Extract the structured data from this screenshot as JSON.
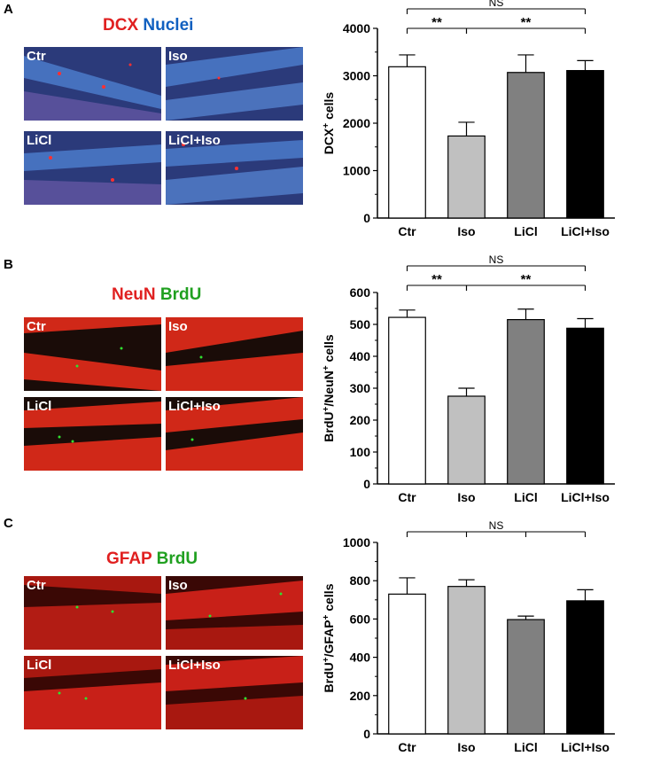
{
  "panels": [
    {
      "letter": "A",
      "stain1": "DCX",
      "stain2": "Nuclei",
      "stain1_color": "#e02020",
      "stain2_color": "#1060c0",
      "image_labels": [
        "Ctr",
        "Iso",
        "LiCl",
        "LiCl+Iso"
      ]
    },
    {
      "letter": "B",
      "stain1": "NeuN",
      "stain2": "BrdU",
      "stain1_color": "#e02020",
      "stain2_color": "#20a020",
      "image_labels": [
        "Ctr",
        "Iso",
        "LiCl",
        "LiCl+Iso"
      ]
    },
    {
      "letter": "C",
      "stain1": "GFAP",
      "stain2": "BrdU",
      "stain1_color": "#e02020",
      "stain2_color": "#20a020",
      "image_labels": [
        "Ctr",
        "Iso",
        "LiCl",
        "LiCl+Iso"
      ]
    }
  ],
  "chart_data": [
    {
      "type": "bar",
      "categories": [
        "Ctr",
        "Iso",
        "LiCl",
        "LiCl+Iso"
      ],
      "values": [
        3190,
        1730,
        3070,
        3110
      ],
      "errors": [
        250,
        290,
        370,
        210
      ],
      "colors": [
        "#ffffff",
        "#c0c0c0",
        "#808080",
        "#000000"
      ],
      "ylabel_main": "DCX",
      "ylabel_sup": "+",
      "ylabel_tail": " cells",
      "ylim": [
        0,
        4000
      ],
      "yticks": [
        "0",
        "1000",
        "2000",
        "3000",
        "4000"
      ],
      "significance": [
        {
          "from": 0,
          "to": 1,
          "label": "**"
        },
        {
          "from": 1,
          "to": 3,
          "label": "**"
        },
        {
          "from": 0,
          "to": 3,
          "label": "NS"
        }
      ]
    },
    {
      "type": "bar",
      "categories": [
        "Ctr",
        "Iso",
        "LiCl",
        "LiCl+Iso"
      ],
      "values": [
        522,
        275,
        515,
        488
      ],
      "errors": [
        23,
        25,
        33,
        30
      ],
      "colors": [
        "#ffffff",
        "#c0c0c0",
        "#808080",
        "#000000"
      ],
      "ylabel_parts": [
        {
          "t": "BrdU"
        },
        {
          "t": "+",
          "sup": true
        },
        {
          "t": "/NeuN"
        },
        {
          "t": "+",
          "sup": true
        },
        {
          "t": " cells"
        }
      ],
      "ylim": [
        0,
        600
      ],
      "yticks": [
        "0",
        "100",
        "200",
        "300",
        "400",
        "500",
        "600"
      ],
      "significance": [
        {
          "from": 0,
          "to": 1,
          "label": "**"
        },
        {
          "from": 1,
          "to": 3,
          "label": "**"
        },
        {
          "from": 0,
          "to": 3,
          "label": "NS"
        }
      ]
    },
    {
      "type": "bar",
      "categories": [
        "Ctr",
        "Iso",
        "LiCl",
        "LiCl+Iso"
      ],
      "values": [
        730,
        770,
        597,
        695
      ],
      "errors": [
        85,
        35,
        18,
        58
      ],
      "colors": [
        "#ffffff",
        "#c0c0c0",
        "#808080",
        "#000000"
      ],
      "ylabel_parts": [
        {
          "t": "BrdU"
        },
        {
          "t": "+",
          "sup": true
        },
        {
          "t": "/GFAP"
        },
        {
          "t": "+",
          "sup": true
        },
        {
          "t": " cells"
        }
      ],
      "ylim": [
        0,
        1000
      ],
      "yticks": [
        "0",
        "200",
        "400",
        "600",
        "800",
        "1000"
      ],
      "significance": [
        {
          "from": 0,
          "to": 3,
          "label": "NS",
          "all": true
        }
      ]
    }
  ]
}
